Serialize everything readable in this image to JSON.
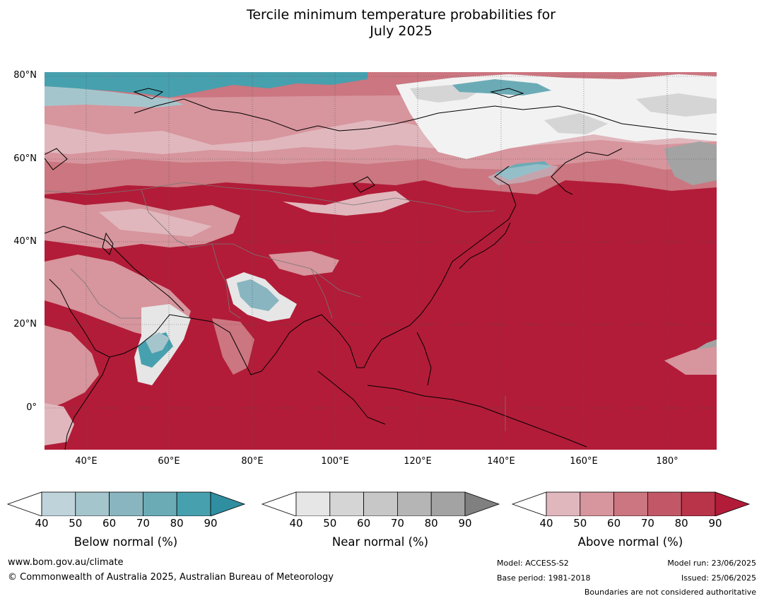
{
  "title_line1": "Tercile minimum temperature probabilities for",
  "title_line2": "July 2025",
  "axes": {
    "lat_labels": [
      "80°N",
      "60°N",
      "40°N",
      "20°N",
      "0°"
    ],
    "lon_labels": [
      "40°E",
      "60°E",
      "80°E",
      "100°E",
      "120°E",
      "140°E",
      "160°E",
      "180°"
    ],
    "lat_range": [
      -10,
      81
    ],
    "lon_range": [
      30,
      192
    ]
  },
  "colorbars": [
    {
      "label": "Below normal (%)",
      "ticks": [
        "40",
        "50",
        "60",
        "70",
        "80",
        "90"
      ],
      "colors": [
        "#ffffff",
        "#bfd3da",
        "#a5c5cc",
        "#88b5c0",
        "#6babb6",
        "#47a0ae",
        "#2f8ea0"
      ]
    },
    {
      "label": "Near normal (%)",
      "ticks": [
        "40",
        "50",
        "60",
        "70",
        "80",
        "90"
      ],
      "colors": [
        "#ffffff",
        "#e6e6e6",
        "#d5d5d5",
        "#c7c7c7",
        "#b5b5b5",
        "#a3a3a3",
        "#808080"
      ]
    },
    {
      "label": "Above normal (%)",
      "ticks": [
        "40",
        "50",
        "60",
        "70",
        "80",
        "90"
      ],
      "colors": [
        "#ffffff",
        "#e0b7bd",
        "#d7959d",
        "#cb7680",
        "#c25867",
        "#b93449",
        "#b21c38"
      ]
    }
  ],
  "footer": {
    "url": "www.bom.gov.au/climate",
    "copyright": "© Commonwealth of Australia 2025, Australian Bureau of Meteorology",
    "model": "Model: ACCESS-S2",
    "base_period": "Base period: 1981-2018",
    "model_run": "Model run: 23/06/2025",
    "issued": "Issued: 25/06/2025",
    "disclaimer": "Boundaries are not considered authoritative"
  }
}
